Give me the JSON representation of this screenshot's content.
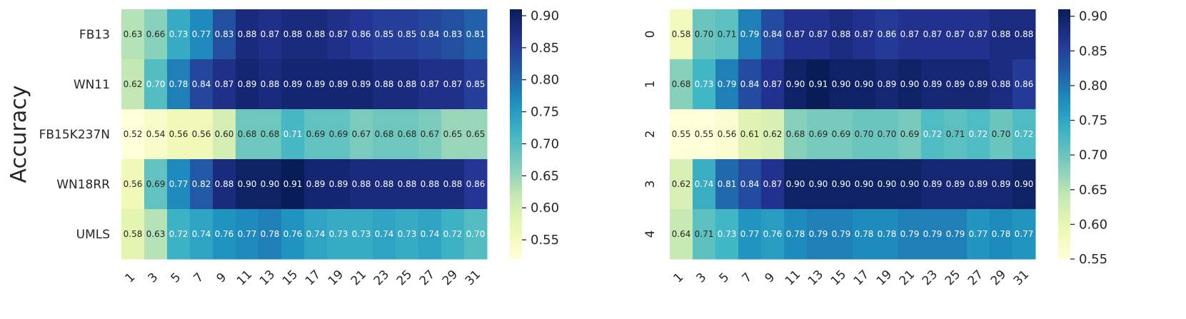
{
  "chart_data": [
    {
      "type": "heatmap",
      "title": "",
      "ylabel": "Accuracy",
      "xlabel": "",
      "x_categories": [
        "1",
        "3",
        "5",
        "7",
        "9",
        "11",
        "13",
        "15",
        "17",
        "19",
        "21",
        "23",
        "25",
        "27",
        "29",
        "31"
      ],
      "y_categories": [
        "FB13",
        "WN11",
        "FB15K237N",
        "WN18RR",
        "UMLS"
      ],
      "values": [
        [
          0.63,
          0.66,
          0.73,
          0.77,
          0.83,
          0.88,
          0.87,
          0.88,
          0.88,
          0.87,
          0.86,
          0.85,
          0.85,
          0.84,
          0.83,
          0.81
        ],
        [
          0.62,
          0.7,
          0.78,
          0.84,
          0.87,
          0.89,
          0.88,
          0.89,
          0.89,
          0.89,
          0.89,
          0.88,
          0.88,
          0.87,
          0.87,
          0.85
        ],
        [
          0.52,
          0.54,
          0.56,
          0.56,
          0.6,
          0.68,
          0.68,
          0.71,
          0.69,
          0.69,
          0.67,
          0.68,
          0.68,
          0.67,
          0.65,
          0.65
        ],
        [
          0.56,
          0.69,
          0.77,
          0.82,
          0.88,
          0.9,
          0.9,
          0.91,
          0.89,
          0.89,
          0.88,
          0.88,
          0.88,
          0.88,
          0.88,
          0.86
        ],
        [
          0.58,
          0.63,
          0.72,
          0.74,
          0.76,
          0.77,
          0.78,
          0.76,
          0.74,
          0.73,
          0.73,
          0.74,
          0.73,
          0.74,
          0.72,
          0.7
        ]
      ],
      "colorbar": {
        "range": [
          0.52,
          0.91
        ],
        "ticks": [
          "0.90",
          "0.85",
          "0.80",
          "0.75",
          "0.70",
          "0.65",
          "0.60",
          "0.55"
        ]
      }
    },
    {
      "type": "heatmap",
      "title": "",
      "ylabel": "",
      "xlabel": "",
      "x_categories": [
        "1",
        "3",
        "5",
        "7",
        "9",
        "11",
        "13",
        "15",
        "17",
        "19",
        "21",
        "23",
        "25",
        "27",
        "29",
        "31"
      ],
      "y_categories": [
        "0",
        "1",
        "2",
        "3",
        "4"
      ],
      "values": [
        [
          0.58,
          0.7,
          0.71,
          0.79,
          0.84,
          0.87,
          0.87,
          0.88,
          0.87,
          0.86,
          0.87,
          0.87,
          0.87,
          0.87,
          0.88,
          0.88
        ],
        [
          0.68,
          0.73,
          0.79,
          0.84,
          0.87,
          0.9,
          0.91,
          0.9,
          0.9,
          0.89,
          0.9,
          0.89,
          0.89,
          0.89,
          0.88,
          0.86
        ],
        [
          0.55,
          0.55,
          0.56,
          0.61,
          0.62,
          0.68,
          0.69,
          0.69,
          0.7,
          0.7,
          0.69,
          0.72,
          0.71,
          0.72,
          0.7,
          0.72
        ],
        [
          0.62,
          0.74,
          0.81,
          0.84,
          0.87,
          0.9,
          0.9,
          0.9,
          0.9,
          0.9,
          0.9,
          0.89,
          0.89,
          0.89,
          0.89,
          0.9
        ],
        [
          0.64,
          0.71,
          0.73,
          0.77,
          0.76,
          0.78,
          0.79,
          0.79,
          0.78,
          0.78,
          0.79,
          0.79,
          0.79,
          0.77,
          0.78,
          0.77
        ]
      ],
      "colorbar": {
        "range": [
          0.55,
          0.91
        ],
        "ticks": [
          "0.90",
          "0.85",
          "0.80",
          "0.75",
          "0.70",
          "0.65",
          "0.60",
          "0.55"
        ]
      }
    }
  ],
  "colors": {
    "colormap": "YlGnBu",
    "stops": [
      "#ffffd9",
      "#edf8b1",
      "#c7e9b4",
      "#7fcdbb",
      "#41b6c4",
      "#1d91c0",
      "#225ea8",
      "#253494",
      "#081d58"
    ],
    "text_dark": "#262626",
    "text_light": "#ffffff"
  }
}
